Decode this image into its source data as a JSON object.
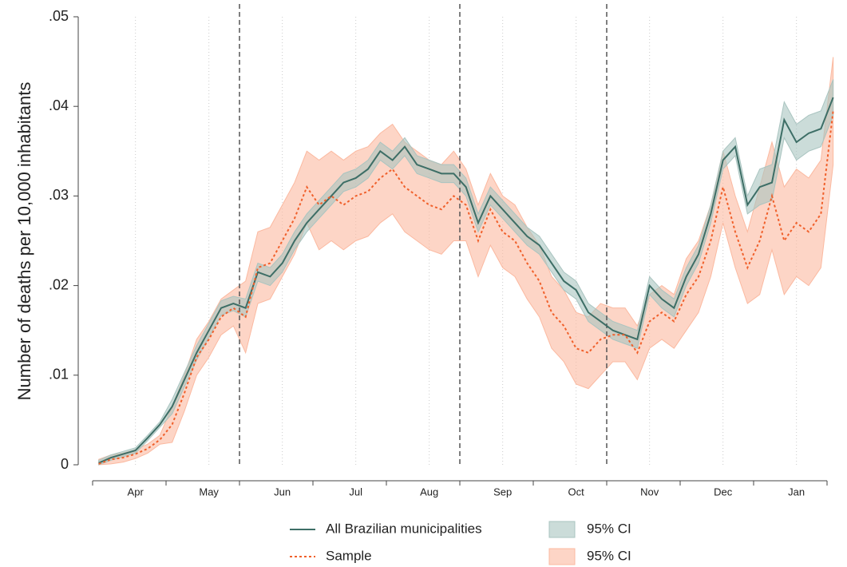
{
  "chart_data": {
    "type": "line",
    "y_label": "Number of deaths per 10,000 inhabitants",
    "categories": [
      null,
      null,
      null,
      "Apr",
      null,
      null,
      null,
      null,
      null,
      "May",
      null,
      null,
      null,
      null,
      null,
      "Jun",
      null,
      null,
      null,
      null,
      null,
      "Jul",
      null,
      null,
      null,
      null,
      null,
      "Aug",
      null,
      null,
      null,
      null,
      null,
      "Sep",
      null,
      null,
      null,
      null,
      null,
      "Oct",
      null,
      null,
      null,
      null,
      null,
      "Nov",
      null,
      null,
      null,
      null,
      null,
      "Dec",
      null,
      null,
      null,
      null,
      null,
      "Jan",
      null,
      null,
      null
    ],
    "dashed_months": [
      "Jun",
      "Sep",
      "Nov"
    ],
    "ylim": [
      0,
      0.05
    ],
    "yticks": [
      0,
      {
        "value": 0.01,
        "label": ".01"
      },
      {
        "value": 0.02,
        "label": ".02"
      },
      {
        "value": 0.03,
        "label": ".03"
      },
      {
        "value": 0.04,
        "label": ".04"
      },
      {
        "value": 0.05,
        "label": ".05"
      }
    ],
    "grid": true,
    "series": [
      {
        "name": "All Brazilian municipalities",
        "color": "#3d6e66",
        "dash": false,
        "ci_name": "95% CI",
        "ci_color": "#a9c4c0",
        "values": [
          0.0002,
          0.0008,
          0.0012,
          0.0016,
          0.003,
          0.0045,
          0.0065,
          0.0095,
          0.0125,
          0.015,
          0.0175,
          0.018,
          0.0175,
          0.0215,
          0.021,
          0.0225,
          0.025,
          0.027,
          0.0285,
          0.03,
          0.0315,
          0.032,
          0.033,
          0.035,
          0.034,
          0.0355,
          0.0335,
          0.033,
          0.0325,
          0.0325,
          0.031,
          0.027,
          0.03,
          0.0285,
          0.027,
          0.0255,
          0.0245,
          0.0225,
          0.0205,
          0.0195,
          0.017,
          0.016,
          0.015,
          0.0145,
          0.014,
          0.02,
          0.0185,
          0.0175,
          0.021,
          0.0235,
          0.028,
          0.034,
          0.0355,
          0.029,
          0.031,
          0.0315,
          0.0385,
          0.036,
          0.037,
          0.0375,
          0.041
        ],
        "ci_lower": [
          0,
          0.0005,
          0.0009,
          0.0013,
          0.0027,
          0.0042,
          0.0057,
          0.0087,
          0.0117,
          0.0142,
          0.0167,
          0.0172,
          0.0165,
          0.0205,
          0.02,
          0.0215,
          0.024,
          0.026,
          0.0275,
          0.029,
          0.0305,
          0.031,
          0.032,
          0.034,
          0.033,
          0.0345,
          0.0325,
          0.032,
          0.0315,
          0.0315,
          0.03,
          0.026,
          0.029,
          0.0275,
          0.026,
          0.0245,
          0.0235,
          0.0215,
          0.0195,
          0.0185,
          0.016,
          0.015,
          0.014,
          0.0135,
          0.013,
          0.019,
          0.0175,
          0.0165,
          0.02,
          0.0225,
          0.027,
          0.033,
          0.0345,
          0.028,
          0.029,
          0.0295,
          0.0365,
          0.034,
          0.035,
          0.0355,
          0.039
        ],
        "ci_upper": [
          0.0005,
          0.0011,
          0.0015,
          0.0019,
          0.0033,
          0.0048,
          0.0073,
          0.0103,
          0.0133,
          0.0158,
          0.0183,
          0.0188,
          0.0185,
          0.0225,
          0.022,
          0.0235,
          0.026,
          0.028,
          0.0295,
          0.031,
          0.0325,
          0.033,
          0.034,
          0.036,
          0.035,
          0.0365,
          0.0345,
          0.034,
          0.0335,
          0.0335,
          0.032,
          0.028,
          0.031,
          0.0295,
          0.028,
          0.0265,
          0.0255,
          0.0235,
          0.0215,
          0.0205,
          0.018,
          0.017,
          0.016,
          0.0155,
          0.015,
          0.021,
          0.0195,
          0.0185,
          0.022,
          0.0245,
          0.029,
          0.035,
          0.0365,
          0.03,
          0.033,
          0.0335,
          0.0405,
          0.038,
          0.039,
          0.0395,
          0.043
        ]
      },
      {
        "name": "Sample",
        "color": "#f0602b",
        "dash": true,
        "ci_name": "95% CI",
        "ci_color": "#fbb9a0",
        "values": [
          0.0001,
          0.0006,
          0.0008,
          0.0012,
          0.0018,
          0.0028,
          0.0045,
          0.008,
          0.012,
          0.014,
          0.0165,
          0.0175,
          0.0165,
          0.022,
          0.0225,
          0.025,
          0.0275,
          0.031,
          0.029,
          0.03,
          0.029,
          0.03,
          0.0305,
          0.032,
          0.033,
          0.031,
          0.03,
          0.029,
          0.0285,
          0.03,
          0.029,
          0.025,
          0.0285,
          0.026,
          0.025,
          0.0225,
          0.0205,
          0.017,
          0.0155,
          0.013,
          0.0125,
          0.014,
          0.0145,
          0.0145,
          0.0125,
          0.016,
          0.017,
          0.016,
          0.019,
          0.021,
          0.025,
          0.031,
          0.026,
          0.022,
          0.025,
          0.03,
          0.025,
          0.027,
          0.026,
          0.028,
          0.0395
        ],
        "ci_lower": [
          0,
          0.0001,
          0.0003,
          0.0007,
          0.0013,
          0.0023,
          0.0025,
          0.006,
          0.01,
          0.012,
          0.0145,
          0.0155,
          0.0125,
          0.018,
          0.0185,
          0.021,
          0.0235,
          0.027,
          0.024,
          0.025,
          0.024,
          0.025,
          0.0255,
          0.027,
          0.028,
          0.026,
          0.025,
          0.024,
          0.0235,
          0.025,
          0.025,
          0.021,
          0.0245,
          0.022,
          0.021,
          0.0185,
          0.0165,
          0.013,
          0.0115,
          0.009,
          0.0085,
          0.01,
          0.0115,
          0.0115,
          0.0095,
          0.013,
          0.014,
          0.013,
          0.015,
          0.017,
          0.021,
          0.027,
          0.022,
          0.018,
          0.019,
          0.024,
          0.019,
          0.021,
          0.02,
          0.022,
          0.0335
        ],
        "ci_upper": [
          0.0006,
          0.0011,
          0.0013,
          0.0017,
          0.0023,
          0.0033,
          0.0065,
          0.01,
          0.014,
          0.016,
          0.0185,
          0.0195,
          0.0205,
          0.026,
          0.0265,
          0.029,
          0.0315,
          0.035,
          0.034,
          0.035,
          0.034,
          0.035,
          0.0355,
          0.037,
          0.038,
          0.036,
          0.035,
          0.034,
          0.0335,
          0.035,
          0.033,
          0.029,
          0.0325,
          0.03,
          0.029,
          0.0265,
          0.0245,
          0.021,
          0.0195,
          0.017,
          0.0165,
          0.018,
          0.0175,
          0.0175,
          0.0155,
          0.019,
          0.02,
          0.019,
          0.023,
          0.025,
          0.029,
          0.035,
          0.03,
          0.026,
          0.031,
          0.036,
          0.031,
          0.033,
          0.032,
          0.034,
          0.0455
        ]
      }
    ]
  }
}
